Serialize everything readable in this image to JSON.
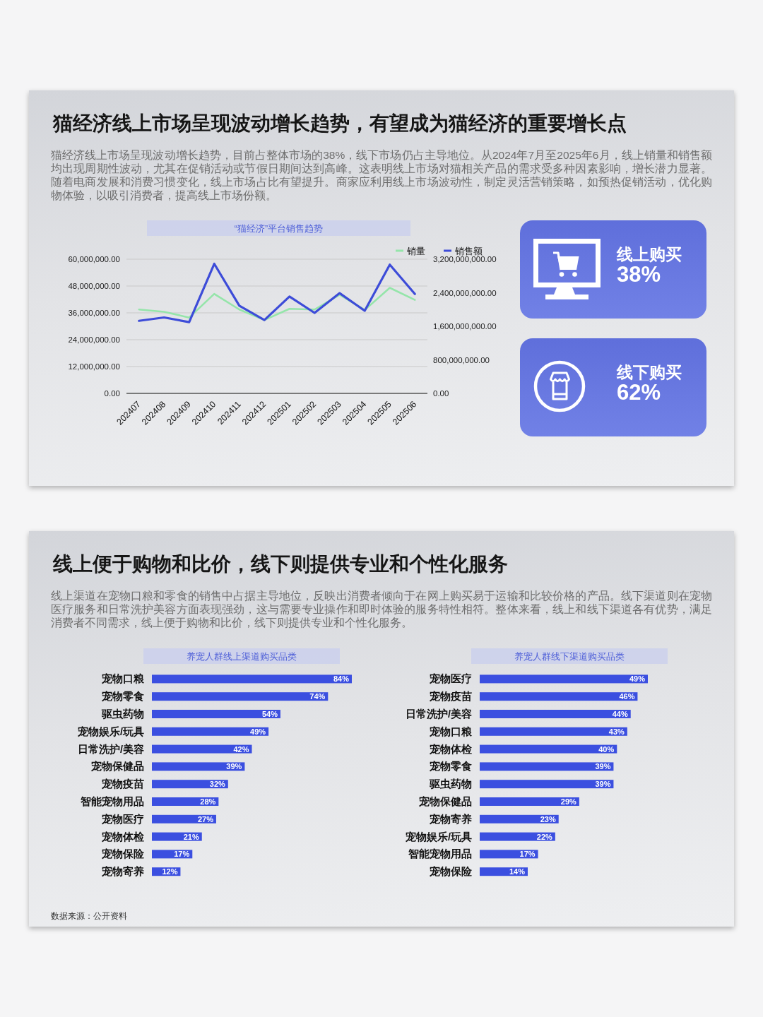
{
  "chart_data": [
    {
      "type": "other",
      "title": "猫经济线上市场呈现波动增长趋势，有望成为猫经济的重要增长点",
      "subtitle": "猫经济线上市场呈现波动增长趋势，目前占整体市场的38%，线下市场仍占主导地位。从2024年7月至2025年6月，线上销量和销售额均出现周期性波动，尤其在促销活动或节假日期间达到高峰。这表明线上市场对猫相关产品的需求受多种因素影响，增长潜力显著。随着电商发展和消费习惯变化，线上市场占比有望提升。商家应利用线上市场波动性，制定灵活营销策略，如预热促销活动，优化购物体验，以吸引消费者，提高线上市场份额。"
    },
    {
      "type": "line",
      "title": "“猫经济”平台销售趋势",
      "categories": [
        "202407",
        "202408",
        "202409",
        "202410",
        "202411",
        "202412",
        "202501",
        "202502",
        "202503",
        "202504",
        "202505",
        "202506"
      ],
      "series": [
        {
          "name": "销量",
          "color": "#95e5aa",
          "values": [
            37500000,
            36500000,
            33900000,
            44500000,
            37500000,
            32800000,
            37800000,
            37500000,
            44100000,
            37300000,
            47200000,
            41800000
          ]
        },
        {
          "name": "销售额",
          "color": "#3d4cd8",
          "axis": "y2",
          "values": [
            1730000000,
            1810000000,
            1700000000,
            3090000000,
            2090000000,
            1750000000,
            2310000000,
            1920000000,
            2390000000,
            1970000000,
            3070000000,
            2370000000
          ]
        }
      ],
      "ylim": [
        0,
        60000000
      ],
      "yticks": [
        {
          "value": 0,
          "label": "0.00"
        },
        {
          "value": 12000000,
          "label": "12,000,000.00"
        },
        {
          "value": 24000000,
          "label": "24,000,000.00"
        },
        {
          "value": 36000000,
          "label": "36,000,000.00"
        },
        {
          "value": 48000000,
          "label": "48,000,000.00"
        },
        {
          "value": 60000000,
          "label": "60,000,000.00"
        }
      ],
      "y2lim": [
        0,
        3200000000
      ],
      "y2ticks": [
        {
          "value": 0,
          "label": "0.00"
        },
        {
          "value": 800000000,
          "label": "800,000,000.00"
        },
        {
          "value": 1600000000,
          "label": "1,600,000,000.00"
        },
        {
          "value": 2400000000,
          "label": "2,400,000,000.00"
        },
        {
          "value": 3200000000,
          "label": "3,200,000,000.00"
        }
      ],
      "grid": "y",
      "legend": "top right"
    },
    {
      "type": "other",
      "title": "线上购买",
      "annotations": [
        "38%"
      ]
    },
    {
      "type": "other",
      "title": "线下购买",
      "annotations": [
        "62%"
      ]
    },
    {
      "type": "other",
      "title": "线上便于购物和比价，线下则提供专业和个性化服务",
      "subtitle": "线上渠道在宠物口粮和零食的销售中占据主导地位，反映出消费者倾向于在网上购买易于运输和比较价格的产品。线下渠道则在宠物医疗服务和日常洗护美容方面表现强劲，这与需要专业操作和即时体验的服务特性相符。整体来看，线上和线下渠道各有优势，满足消费者不同需求，线上便于购物和比价，线下则提供专业和个性化服务。",
      "annotations": [
        "数据来源：公开资料"
      ]
    },
    {
      "type": "bar",
      "orientation": "horizontal",
      "title": "养宠人群线上渠道购买品类",
      "categories": [
        "宠物口粮",
        "宠物零食",
        "驱虫药物",
        "宠物娱乐/玩具",
        "日常洗护/美容",
        "宠物保健品",
        "宠物疫苗",
        "智能宠物用品",
        "宠物医疗",
        "宠物体检",
        "宠物保险",
        "宠物寄养"
      ],
      "values": [
        84,
        74,
        54,
        49,
        42,
        39,
        32,
        28,
        27,
        21,
        17,
        12
      ],
      "value_labels": [
        "84%",
        "74%",
        "54%",
        "49%",
        "42%",
        "39%",
        "32%",
        "28%",
        "27%",
        "21%",
        "17%",
        "12%"
      ],
      "color": "#3b4fe0",
      "tick_labels": "y"
    },
    {
      "type": "bar",
      "orientation": "horizontal",
      "title": "养宠人群线下渠道购买品类",
      "categories": [
        "宠物医疗",
        "宠物疫苗",
        "日常洗护/美容",
        "宠物口粮",
        "宠物体检",
        "宠物零食",
        "驱虫药物",
        "宠物保健品",
        "宠物寄养",
        "宠物娱乐/玩具",
        "智能宠物用品",
        "宠物保险"
      ],
      "values": [
        49,
        46,
        44,
        43,
        40,
        39,
        39,
        29,
        23,
        22,
        17,
        14
      ],
      "value_labels": [
        "49%",
        "46%",
        "44%",
        "43%",
        "40%",
        "39%",
        "39%",
        "29%",
        "23%",
        "22%",
        "17%",
        "14%"
      ],
      "color": "#3b4fe0",
      "tick_labels": "y"
    }
  ]
}
